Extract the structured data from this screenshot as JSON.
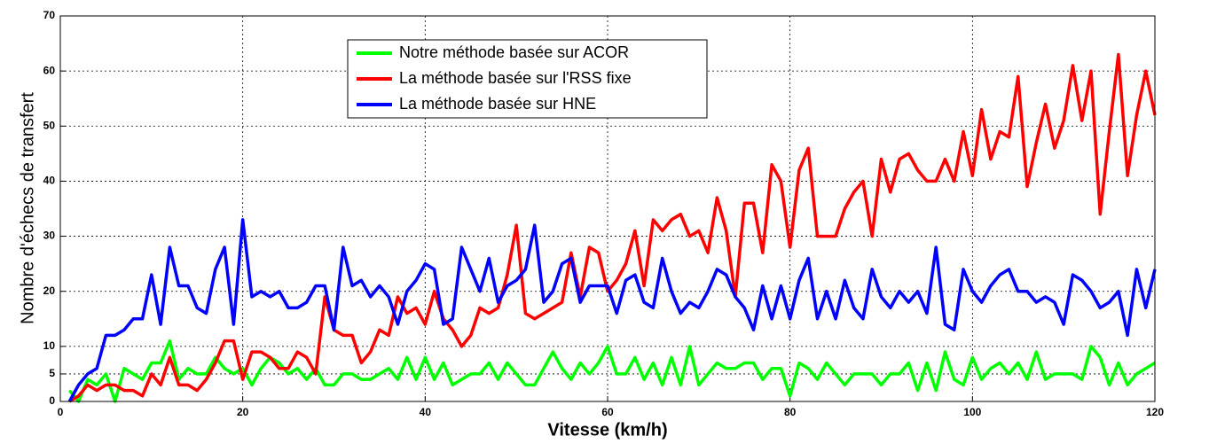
{
  "chart_data": {
    "type": "line",
    "x_label": "Vitesse (km/h)",
    "y_label": "Nombre d'échecs de transfert",
    "x": [
      1,
      2,
      3,
      4,
      5,
      6,
      7,
      8,
      9,
      10,
      11,
      12,
      13,
      14,
      15,
      16,
      17,
      18,
      19,
      20,
      21,
      22,
      23,
      24,
      25,
      26,
      27,
      28,
      29,
      30,
      31,
      32,
      33,
      34,
      35,
      36,
      37,
      38,
      39,
      40,
      41,
      42,
      43,
      44,
      45,
      46,
      47,
      48,
      49,
      50,
      51,
      52,
      53,
      54,
      55,
      56,
      57,
      58,
      59,
      60,
      61,
      62,
      63,
      64,
      65,
      66,
      67,
      68,
      69,
      70,
      71,
      72,
      73,
      74,
      75,
      76,
      77,
      78,
      79,
      80,
      81,
      82,
      83,
      84,
      85,
      86,
      87,
      88,
      89,
      90,
      91,
      92,
      93,
      94,
      95,
      96,
      97,
      98,
      99,
      100,
      101,
      102,
      103,
      104,
      105,
      106,
      107,
      108,
      109,
      110,
      111,
      112,
      113,
      114,
      115,
      116,
      117,
      118,
      119,
      120
    ],
    "series": [
      {
        "name": "Notre méthode basée sur ACOR",
        "color": "#00ff00",
        "values": [
          2,
          0,
          4,
          3,
          5,
          0,
          6,
          5,
          4,
          7,
          7,
          11,
          4,
          6,
          5,
          5,
          8,
          6,
          5,
          6,
          3,
          6,
          8,
          7,
          5,
          6,
          4,
          6,
          3,
          3,
          5,
          5,
          4,
          4,
          5,
          6,
          4,
          8,
          4,
          8,
          4,
          7,
          3,
          4,
          5,
          5,
          7,
          4,
          7,
          5,
          3,
          3,
          6,
          9,
          6,
          4,
          7,
          5,
          7,
          10,
          5,
          5,
          8,
          4,
          7,
          3,
          8,
          3,
          10,
          3,
          5,
          7,
          6,
          6,
          7,
          7,
          4,
          6,
          6,
          1,
          7,
          6,
          4,
          7,
          5,
          3,
          5,
          5,
          5,
          3,
          5,
          5,
          7,
          2,
          7,
          2,
          9,
          4,
          3,
          8,
          4,
          6,
          7,
          5,
          7,
          4,
          9,
          4,
          5,
          5,
          5,
          4,
          10,
          8,
          3,
          7,
          3,
          5,
          6,
          7
        ]
      },
      {
        "name": "La méthode basée sur l'RSS fixe",
        "color": "#ff0000",
        "values": [
          0,
          1,
          3,
          2,
          3,
          3,
          2,
          2,
          1,
          5,
          3,
          8,
          3,
          3,
          2,
          4,
          7,
          11,
          11,
          4,
          9,
          9,
          8,
          6,
          6,
          9,
          8,
          5,
          19,
          13,
          12,
          12,
          7,
          9,
          13,
          12,
          19,
          16,
          17,
          14,
          20,
          15,
          13,
          10,
          12,
          17,
          16,
          17,
          23,
          32,
          16,
          15,
          16,
          17,
          18,
          27,
          19,
          28,
          27,
          20,
          22,
          25,
          31,
          21,
          33,
          31,
          33,
          34,
          30,
          31,
          27,
          37,
          31,
          19,
          36,
          36,
          27,
          43,
          40,
          28,
          42,
          46,
          30,
          30,
          30,
          35,
          38,
          40,
          30,
          44,
          38,
          44,
          45,
          42,
          40,
          40,
          44,
          40,
          49,
          41,
          53,
          44,
          49,
          48,
          59,
          39,
          47,
          54,
          46,
          51,
          61,
          51,
          60,
          34,
          49,
          63,
          41,
          52,
          60,
          52
        ]
      },
      {
        "name": "La méthode basée sur HNE",
        "color": "#0000ff",
        "values": [
          0,
          3,
          5,
          6,
          12,
          12,
          13,
          15,
          15,
          23,
          14,
          28,
          21,
          21,
          17,
          16,
          24,
          28,
          14,
          33,
          19,
          20,
          19,
          20,
          17,
          17,
          18,
          21,
          21,
          13,
          28,
          21,
          22,
          19,
          21,
          19,
          14,
          20,
          22,
          25,
          24,
          14,
          15,
          28,
          24,
          20,
          26,
          18,
          21,
          22,
          24,
          32,
          18,
          20,
          25,
          26,
          18,
          21,
          21,
          21,
          16,
          22,
          23,
          18,
          17,
          26,
          20,
          16,
          18,
          17,
          20,
          24,
          23,
          19,
          17,
          13,
          21,
          15,
          21,
          15,
          22,
          26,
          15,
          20,
          15,
          22,
          17,
          15,
          24,
          19,
          17,
          20,
          18,
          20,
          16,
          28,
          14,
          13,
          24,
          20,
          18,
          21,
          23,
          24,
          20,
          20,
          18,
          19,
          18,
          14,
          23,
          22,
          20,
          17,
          18,
          20,
          12,
          24,
          17,
          24
        ]
      }
    ],
    "xlim": [
      0,
      120
    ],
    "xticks": [
      0,
      20,
      40,
      60,
      80,
      100,
      120
    ],
    "ylim": [
      0,
      70
    ],
    "yticks": [
      0,
      5,
      10,
      20,
      30,
      40,
      50,
      60,
      70
    ],
    "grid": true,
    "legend": "top"
  }
}
